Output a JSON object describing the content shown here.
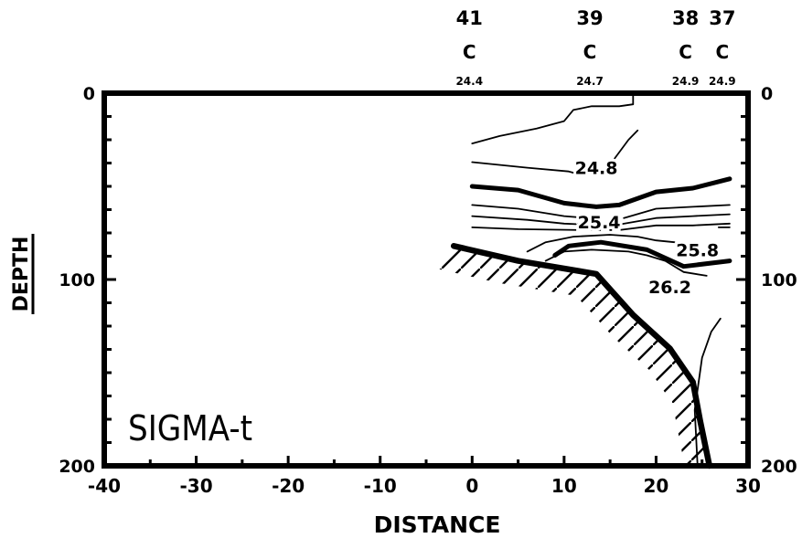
{
  "chart_data": {
    "type": "contour",
    "title": "SIGMA-t",
    "xlabel": "DISTANCE",
    "ylabel": "DEPTH",
    "xlim": [
      -40,
      30
    ],
    "ylim": [
      0,
      200
    ],
    "y_inverted": true,
    "x_ticks": [
      "-40",
      "-30",
      "-20",
      "-10",
      "0",
      "10",
      "20",
      "30"
    ],
    "y_ticks": [
      "0",
      "100",
      "200"
    ],
    "stations": [
      {
        "id": "41",
        "type": "C",
        "surface": "24.4",
        "x": -0.3
      },
      {
        "id": "39",
        "type": "C",
        "surface": "24.7",
        "x": 12.8
      },
      {
        "id": "38",
        "type": "C",
        "surface": "24.9",
        "x": 23.2
      },
      {
        "id": "37",
        "type": "C",
        "surface": "24.9",
        "x": 27.2
      }
    ],
    "contour_labels": [
      {
        "text": "24.8",
        "x": 13.5,
        "y": 40
      },
      {
        "text": "25.4",
        "x": 13.8,
        "y": 69
      },
      {
        "text": "25.8",
        "x": 24.5,
        "y": 84
      },
      {
        "text": "26.2",
        "x": 21.5,
        "y": 104
      }
    ],
    "heavy_contours": [
      [
        [
          0,
          50
        ],
        [
          5,
          52
        ],
        [
          10,
          59
        ],
        [
          13.5,
          61
        ],
        [
          16,
          60
        ],
        [
          20,
          53
        ],
        [
          24,
          51
        ],
        [
          28,
          46
        ]
      ],
      [
        [
          9,
          87
        ],
        [
          10.5,
          82
        ],
        [
          14,
          80
        ],
        [
          19,
          84
        ],
        [
          23,
          93
        ],
        [
          28,
          90
        ]
      ]
    ],
    "light_contours": [
      [
        [
          0,
          27
        ],
        [
          3,
          23
        ],
        [
          7,
          19
        ],
        [
          10,
          15
        ],
        [
          11,
          9
        ],
        [
          13,
          7
        ],
        [
          16,
          7
        ],
        [
          17.5,
          6
        ],
        [
          17.5,
          1
        ]
      ],
      [
        [
          0,
          37
        ],
        [
          6,
          40
        ],
        [
          10.5,
          42
        ],
        [
          12,
          44
        ]
      ],
      [
        [
          15.5,
          35
        ],
        [
          17,
          25
        ],
        [
          18,
          20
        ]
      ],
      [
        [
          0,
          60
        ],
        [
          5,
          62
        ],
        [
          10,
          66
        ],
        [
          12.5,
          67
        ]
      ],
      [
        [
          16.5,
          67
        ],
        [
          20,
          62
        ],
        [
          24,
          61
        ],
        [
          28,
          60
        ]
      ],
      [
        [
          0,
          66
        ],
        [
          6,
          68
        ],
        [
          10,
          70
        ],
        [
          12.3,
          70.5
        ]
      ],
      [
        [
          16,
          70.5
        ],
        [
          20,
          67
        ],
        [
          24,
          66
        ],
        [
          28,
          65
        ]
      ],
      [
        [
          0,
          72
        ],
        [
          5,
          73
        ],
        [
          12,
          73.5
        ],
        [
          16,
          73.5
        ],
        [
          20,
          71
        ],
        [
          24,
          71
        ],
        [
          28,
          70
        ]
      ],
      [
        [
          6,
          85
        ],
        [
          8,
          80
        ],
        [
          11,
          77
        ],
        [
          15,
          76
        ],
        [
          18,
          77
        ],
        [
          20,
          79
        ],
        [
          22,
          80
        ]
      ],
      [
        [
          8,
          90
        ],
        [
          10,
          85
        ],
        [
          13,
          84
        ],
        [
          17,
          85
        ],
        [
          19,
          87
        ],
        [
          21,
          90
        ],
        [
          23,
          96
        ],
        [
          25.5,
          98
        ]
      ],
      [
        [
          26.8,
          72
        ],
        [
          28,
          72
        ]
      ],
      [
        [
          24.5,
          199
        ],
        [
          24.2,
          170
        ],
        [
          25,
          142
        ],
        [
          26,
          128
        ],
        [
          27,
          121
        ]
      ]
    ],
    "bottom_profile": [
      [
        -2,
        82
      ],
      [
        5,
        90
      ],
      [
        13.5,
        97
      ],
      [
        17.5,
        119
      ],
      [
        21.5,
        137
      ],
      [
        24,
        155
      ],
      [
        24.8,
        176
      ],
      [
        25.8,
        200
      ]
    ],
    "grid": false,
    "legend": "none"
  }
}
